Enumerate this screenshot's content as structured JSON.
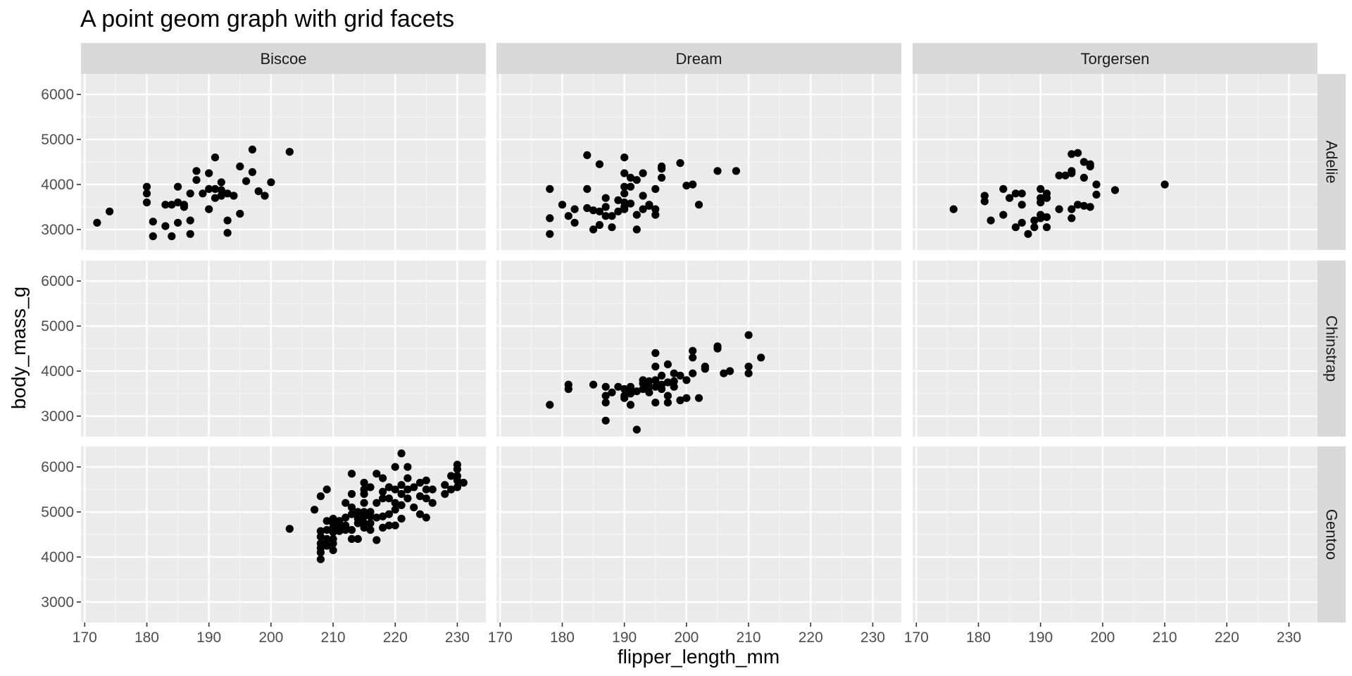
{
  "chart_data": {
    "type": "scatter",
    "title": "A point geom graph with grid facets",
    "xlabel": "flipper_length_mm",
    "ylabel": "body_mass_g",
    "xlim": [
      169.4,
      234.6
    ],
    "ylim": [
      2545,
      6455
    ],
    "xticks": [
      170,
      180,
      190,
      200,
      210,
      220,
      230
    ],
    "yticks": [
      3000,
      4000,
      5000,
      6000
    ],
    "grid": true,
    "facet_cols": [
      "Biscoe",
      "Dream",
      "Torgersen"
    ],
    "facet_rows": [
      "Adelie",
      "Chinstrap",
      "Gentoo"
    ],
    "colors": {
      "panel_bg": "#ebebeb",
      "grid_major": "#ffffff",
      "strip_bg": "#d9d9d9",
      "point": "#000000",
      "tick": "#333333"
    },
    "panels": [
      {
        "row": "Adelie",
        "col": "Biscoe",
        "points": [
          [
            172,
            3150
          ],
          [
            174,
            3400
          ],
          [
            180,
            3950
          ],
          [
            180,
            3800
          ],
          [
            180,
            3600
          ],
          [
            181,
            3175
          ],
          [
            181,
            2850
          ],
          [
            183,
            3550
          ],
          [
            183,
            3075
          ],
          [
            184,
            3550
          ],
          [
            184,
            2850
          ],
          [
            185,
            3950
          ],
          [
            185,
            3600
          ],
          [
            185,
            3150
          ],
          [
            186,
            3550
          ],
          [
            186,
            3500
          ],
          [
            187,
            3800
          ],
          [
            187,
            3200
          ],
          [
            187,
            2900
          ],
          [
            188,
            4300
          ],
          [
            188,
            4100
          ],
          [
            189,
            3800
          ],
          [
            190,
            4250
          ],
          [
            190,
            3900
          ],
          [
            190,
            3450
          ],
          [
            191,
            4600
          ],
          [
            191,
            3900
          ],
          [
            191,
            3700
          ],
          [
            192,
            4050
          ],
          [
            192,
            3750
          ],
          [
            192,
            3875
          ],
          [
            193,
            3800
          ],
          [
            193,
            3200
          ],
          [
            193,
            2925
          ],
          [
            194,
            3750
          ],
          [
            195,
            4400
          ],
          [
            195,
            3350
          ],
          [
            196,
            4075
          ],
          [
            197,
            4775
          ],
          [
            197,
            4275
          ],
          [
            198,
            3850
          ],
          [
            199,
            3750
          ],
          [
            200,
            4050
          ],
          [
            203,
            4725
          ]
        ]
      },
      {
        "row": "Adelie",
        "col": "Dream",
        "points": [
          [
            178,
            3900
          ],
          [
            178,
            3250
          ],
          [
            178,
            2900
          ],
          [
            180,
            3550
          ],
          [
            181,
            3300
          ],
          [
            182,
            3450
          ],
          [
            182,
            3150
          ],
          [
            184,
            4650
          ],
          [
            184,
            3900
          ],
          [
            184,
            3475
          ],
          [
            185,
            3425
          ],
          [
            185,
            3000
          ],
          [
            186,
            4450
          ],
          [
            186,
            3400
          ],
          [
            186,
            3100
          ],
          [
            187,
            3700
          ],
          [
            187,
            3500
          ],
          [
            187,
            3300
          ],
          [
            188,
            3300
          ],
          [
            188,
            3050
          ],
          [
            189,
            3650
          ],
          [
            189,
            3400
          ],
          [
            190,
            4600
          ],
          [
            190,
            4250
          ],
          [
            190,
            3950
          ],
          [
            190,
            3800
          ],
          [
            190,
            3600
          ],
          [
            190,
            3450
          ],
          [
            190,
            3500
          ],
          [
            191,
            3950
          ],
          [
            191,
            4150
          ],
          [
            191,
            3575
          ],
          [
            192,
            4100
          ],
          [
            192,
            3325
          ],
          [
            192,
            3000
          ],
          [
            193,
            4250
          ],
          [
            193,
            3750
          ],
          [
            193,
            3450
          ],
          [
            194,
            3550
          ],
          [
            194,
            3525
          ],
          [
            195,
            3900
          ],
          [
            195,
            3450
          ],
          [
            195,
            3325
          ],
          [
            196,
            4400
          ],
          [
            196,
            4350
          ],
          [
            196,
            4150
          ],
          [
            199,
            4475
          ],
          [
            200,
            3975
          ],
          [
            201,
            4000
          ],
          [
            202,
            3550
          ],
          [
            205,
            4300
          ],
          [
            208,
            4300
          ]
        ]
      },
      {
        "row": "Adelie",
        "col": "Torgersen",
        "points": [
          [
            176,
            3450
          ],
          [
            181,
            3750
          ],
          [
            181,
            3625
          ],
          [
            182,
            3200
          ],
          [
            184,
            3900
          ],
          [
            184,
            3325
          ],
          [
            185,
            3700
          ],
          [
            186,
            3800
          ],
          [
            186,
            3050
          ],
          [
            187,
            3800
          ],
          [
            187,
            3550
          ],
          [
            187,
            3150
          ],
          [
            188,
            2900
          ],
          [
            189,
            3200
          ],
          [
            189,
            3050
          ],
          [
            190,
            3900
          ],
          [
            190,
            3700
          ],
          [
            190,
            3600
          ],
          [
            190,
            3325
          ],
          [
            190,
            3250
          ],
          [
            191,
            3800
          ],
          [
            191,
            3700
          ],
          [
            191,
            3275
          ],
          [
            191,
            3050
          ],
          [
            193,
            4200
          ],
          [
            193,
            3450
          ],
          [
            194,
            4200
          ],
          [
            195,
            4675
          ],
          [
            195,
            4300
          ],
          [
            195,
            4250
          ],
          [
            195,
            3450
          ],
          [
            195,
            3250
          ],
          [
            196,
            4700
          ],
          [
            196,
            3550
          ],
          [
            197,
            4500
          ],
          [
            197,
            4150
          ],
          [
            197,
            3525
          ],
          [
            198,
            4450
          ],
          [
            198,
            4400
          ],
          [
            198,
            3500
          ],
          [
            199,
            4000
          ],
          [
            199,
            3775
          ],
          [
            202,
            3875
          ],
          [
            210,
            4000
          ]
        ]
      },
      {
        "row": "Chinstrap",
        "col": "Biscoe",
        "points": []
      },
      {
        "row": "Chinstrap",
        "col": "Dream",
        "points": [
          [
            178,
            3250
          ],
          [
            181,
            3700
          ],
          [
            181,
            3600
          ],
          [
            185,
            3700
          ],
          [
            187,
            3650
          ],
          [
            187,
            3450
          ],
          [
            187,
            3300
          ],
          [
            187,
            2900
          ],
          [
            188,
            3525
          ],
          [
            189,
            3650
          ],
          [
            190,
            3600
          ],
          [
            190,
            3450
          ],
          [
            190,
            3400
          ],
          [
            191,
            3650
          ],
          [
            191,
            3500
          ],
          [
            191,
            3250
          ],
          [
            192,
            3550
          ],
          [
            192,
            2700
          ],
          [
            193,
            3800
          ],
          [
            193,
            3725
          ],
          [
            193,
            3600
          ],
          [
            194,
            3775
          ],
          [
            194,
            3650
          ],
          [
            194,
            3525
          ],
          [
            195,
            4400
          ],
          [
            195,
            4100
          ],
          [
            195,
            3800
          ],
          [
            195,
            3650
          ],
          [
            195,
            3300
          ],
          [
            196,
            3900
          ],
          [
            196,
            3700
          ],
          [
            196,
            3600
          ],
          [
            197,
            4150
          ],
          [
            197,
            3750
          ],
          [
            197,
            3450
          ],
          [
            197,
            3300
          ],
          [
            198,
            3950
          ],
          [
            198,
            3775
          ],
          [
            198,
            3650
          ],
          [
            199,
            3900
          ],
          [
            199,
            3350
          ],
          [
            200,
            3800
          ],
          [
            200,
            3400
          ],
          [
            201,
            4450
          ],
          [
            201,
            4300
          ],
          [
            201,
            3950
          ],
          [
            202,
            3400
          ],
          [
            203,
            4100
          ],
          [
            203,
            4050
          ],
          [
            205,
            4550
          ],
          [
            205,
            4500
          ],
          [
            206,
            3950
          ],
          [
            207,
            4000
          ],
          [
            210,
            4800
          ],
          [
            210,
            4100
          ],
          [
            210,
            3950
          ],
          [
            212,
            4300
          ]
        ]
      },
      {
        "row": "Chinstrap",
        "col": "Torgersen",
        "points": []
      },
      {
        "row": "Gentoo",
        "col": "Biscoe",
        "points": [
          [
            203,
            4625
          ],
          [
            207,
            5050
          ],
          [
            208,
            5350
          ],
          [
            208,
            4575
          ],
          [
            208,
            4450
          ],
          [
            208,
            4300
          ],
          [
            208,
            4200
          ],
          [
            208,
            4100
          ],
          [
            208,
            3950
          ],
          [
            209,
            5500
          ],
          [
            209,
            4800
          ],
          [
            209,
            4600
          ],
          [
            209,
            4400
          ],
          [
            209,
            4250
          ],
          [
            210,
            4850
          ],
          [
            210,
            4750
          ],
          [
            210,
            4650
          ],
          [
            210,
            4550
          ],
          [
            210,
            4400
          ],
          [
            210,
            4300
          ],
          [
            210,
            4150
          ],
          [
            211,
            4800
          ],
          [
            211,
            4700
          ],
          [
            211,
            4575
          ],
          [
            212,
            5200
          ],
          [
            212,
            4875
          ],
          [
            212,
            4700
          ],
          [
            212,
            4600
          ],
          [
            213,
            5850
          ],
          [
            213,
            5400
          ],
          [
            213,
            5100
          ],
          [
            213,
            4950
          ],
          [
            213,
            4600
          ],
          [
            213,
            4400
          ],
          [
            214,
            5000
          ],
          [
            214,
            4850
          ],
          [
            214,
            4750
          ],
          [
            214,
            4400
          ],
          [
            215,
            5650
          ],
          [
            215,
            5500
          ],
          [
            215,
            5400
          ],
          [
            215,
            5200
          ],
          [
            215,
            5000
          ],
          [
            215,
            4900
          ],
          [
            215,
            4750
          ],
          [
            215,
            4650
          ],
          [
            216,
            5550
          ],
          [
            216,
            5000
          ],
          [
            216,
            4900
          ],
          [
            216,
            4750
          ],
          [
            216,
            4600
          ],
          [
            217,
            5850
          ],
          [
            217,
            5200
          ],
          [
            217,
            4875
          ],
          [
            217,
            4375
          ],
          [
            218,
            5750
          ],
          [
            218,
            5450
          ],
          [
            218,
            5300
          ],
          [
            218,
            4900
          ],
          [
            218,
            4650
          ],
          [
            219,
            5550
          ],
          [
            219,
            5300
          ],
          [
            219,
            4950
          ],
          [
            219,
            4700
          ],
          [
            220,
            6000
          ],
          [
            220,
            5500
          ],
          [
            220,
            5200
          ],
          [
            220,
            5050
          ],
          [
            220,
            4700
          ],
          [
            221,
            6300
          ],
          [
            221,
            5600
          ],
          [
            221,
            5400
          ],
          [
            221,
            5150
          ],
          [
            221,
            4850
          ],
          [
            222,
            6000
          ],
          [
            222,
            5750
          ],
          [
            222,
            5500
          ],
          [
            222,
            5300
          ],
          [
            223,
            5550
          ],
          [
            223,
            5100
          ],
          [
            224,
            5650
          ],
          [
            224,
            5350
          ],
          [
            224,
            4950
          ],
          [
            225,
            5700
          ],
          [
            225,
            5500
          ],
          [
            225,
            5300
          ],
          [
            225,
            4875
          ],
          [
            226,
            5500
          ],
          [
            226,
            5200
          ],
          [
            228,
            5600
          ],
          [
            228,
            5400
          ],
          [
            229,
            5800
          ],
          [
            229,
            5500
          ],
          [
            230,
            6050
          ],
          [
            230,
            5950
          ],
          [
            230,
            5800
          ],
          [
            230,
            5700
          ],
          [
            230,
            5550
          ],
          [
            231,
            5650
          ]
        ]
      },
      {
        "row": "Gentoo",
        "col": "Dream",
        "points": []
      },
      {
        "row": "Gentoo",
        "col": "Torgersen",
        "points": []
      }
    ]
  }
}
